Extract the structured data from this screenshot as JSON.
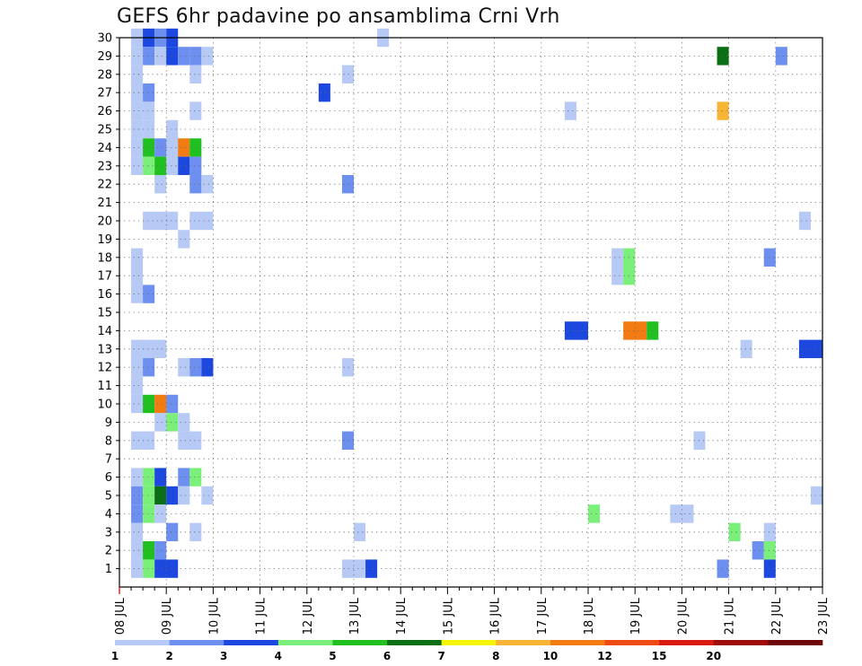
{
  "chart_data": {
    "type": "heatmap",
    "title": "GEFS 6hr padavine po ansamblima Crni Vrh",
    "xlabel": "",
    "ylabel": "",
    "x_tick_labels": [
      "08 JUL",
      "09 JUL",
      "10 JUL",
      "11 JUL",
      "12 JUL",
      "13 JUL",
      "14 JUL",
      "15 JUL",
      "16 JUL",
      "17 JUL",
      "18 JUL",
      "19 JUL",
      "20 JUL",
      "21 JUL",
      "22 JUL",
      "23 JUL"
    ],
    "x_units": "days from 08 JUL 00Z, 6-hour steps",
    "xlim": [
      0,
      15
    ],
    "y_tick_labels": [
      "1",
      "2",
      "3",
      "4",
      "5",
      "6",
      "7",
      "8",
      "9",
      "10",
      "11",
      "12",
      "13",
      "14",
      "15",
      "16",
      "17",
      "18",
      "19",
      "20",
      "21",
      "22",
      "23",
      "24",
      "25",
      "26",
      "27",
      "28",
      "29",
      "30"
    ],
    "ylim": [
      0,
      30
    ],
    "grid": true,
    "legend_position": "bottom",
    "legend": {
      "labels": [
        "1",
        "2",
        "3",
        "4",
        "5",
        "6",
        "7",
        "8",
        "10",
        "12",
        "15",
        "20"
      ],
      "colors": [
        "#b7c9f5",
        "#6c8ff0",
        "#1c48e0",
        "#7af07a",
        "#20c020",
        "#0a6e14",
        "#f5f50a",
        "#f8b434",
        "#f37c12",
        "#f04a14",
        "#d81a10",
        "#a00c0c",
        "#6e0808"
      ]
    },
    "cells": [
      {
        "member": 30,
        "x": 0.25,
        "w": 0.25,
        "c": 1
      },
      {
        "member": 30,
        "x": 0.5,
        "w": 0.25,
        "c": 3
      },
      {
        "member": 30,
        "x": 0.75,
        "w": 0.25,
        "c": 2
      },
      {
        "member": 30,
        "x": 1.0,
        "w": 0.25,
        "c": 3
      },
      {
        "member": 30,
        "x": 5.5,
        "w": 0.25,
        "c": 1
      },
      {
        "member": 29,
        "x": 0.25,
        "w": 0.25,
        "c": 1
      },
      {
        "member": 29,
        "x": 0.5,
        "w": 0.25,
        "c": 2
      },
      {
        "member": 29,
        "x": 0.75,
        "w": 0.25,
        "c": 1
      },
      {
        "member": 29,
        "x": 1.0,
        "w": 0.25,
        "c": 3
      },
      {
        "member": 29,
        "x": 1.25,
        "w": 0.25,
        "c": 2
      },
      {
        "member": 29,
        "x": 1.5,
        "w": 0.25,
        "c": 2
      },
      {
        "member": 29,
        "x": 1.75,
        "w": 0.25,
        "c": 1
      },
      {
        "member": 29,
        "x": 12.75,
        "w": 0.25,
        "c": 6
      },
      {
        "member": 29,
        "x": 14.0,
        "w": 0.25,
        "c": 2
      },
      {
        "member": 28,
        "x": 0.25,
        "w": 0.25,
        "c": 1
      },
      {
        "member": 28,
        "x": 1.5,
        "w": 0.25,
        "c": 1
      },
      {
        "member": 28,
        "x": 4.75,
        "w": 0.25,
        "c": 1
      },
      {
        "member": 27,
        "x": 0.25,
        "w": 0.25,
        "c": 1
      },
      {
        "member": 27,
        "x": 0.5,
        "w": 0.25,
        "c": 2
      },
      {
        "member": 27,
        "x": 4.25,
        "w": 0.25,
        "c": 3
      },
      {
        "member": 26,
        "x": 0.25,
        "w": 0.25,
        "c": 1
      },
      {
        "member": 26,
        "x": 0.5,
        "w": 0.25,
        "c": 1
      },
      {
        "member": 26,
        "x": 1.5,
        "w": 0.25,
        "c": 1
      },
      {
        "member": 26,
        "x": 9.5,
        "w": 0.25,
        "c": 1
      },
      {
        "member": 26,
        "x": 12.75,
        "w": 0.25,
        "c": 8
      },
      {
        "member": 25,
        "x": 0.25,
        "w": 0.25,
        "c": 1
      },
      {
        "member": 25,
        "x": 0.5,
        "w": 0.25,
        "c": 1
      },
      {
        "member": 25,
        "x": 1.0,
        "w": 0.25,
        "c": 1
      },
      {
        "member": 24,
        "x": 0.25,
        "w": 0.25,
        "c": 1
      },
      {
        "member": 24,
        "x": 0.5,
        "w": 0.25,
        "c": 5
      },
      {
        "member": 24,
        "x": 0.75,
        "w": 0.25,
        "c": 2
      },
      {
        "member": 24,
        "x": 1.0,
        "w": 0.25,
        "c": 1
      },
      {
        "member": 24,
        "x": 1.0,
        "w": 0.25,
        "c": 1
      },
      {
        "member": 24,
        "x": 1.0,
        "w": 0.25,
        "c": 1
      },
      {
        "member": 24,
        "x": 1.0,
        "w": 0.25,
        "c": 1
      },
      {
        "member": 24,
        "x": 1.0,
        "w": 0.25,
        "c": 1
      },
      {
        "member": 24,
        "x": 1.0,
        "w": 0.25,
        "c": 1
      },
      {
        "member": 24,
        "x": 1.25,
        "w": 0.25,
        "c": 9
      },
      {
        "member": 24,
        "x": 1.5,
        "w": 0.25,
        "c": 5
      },
      {
        "member": 23,
        "x": 0.25,
        "w": 0.25,
        "c": 1
      },
      {
        "member": 23,
        "x": 0.5,
        "w": 0.25,
        "c": 4
      },
      {
        "member": 23,
        "x": 0.75,
        "w": 0.25,
        "c": 5
      },
      {
        "member": 23,
        "x": 1.0,
        "w": 0.25,
        "c": 1
      },
      {
        "member": 23,
        "x": 1.25,
        "w": 0.25,
        "c": 3
      },
      {
        "member": 23,
        "x": 1.5,
        "w": 0.25,
        "c": 2
      },
      {
        "member": 22,
        "x": 0.75,
        "w": 0.25,
        "c": 1
      },
      {
        "member": 22,
        "x": 1.5,
        "w": 0.25,
        "c": 2
      },
      {
        "member": 22,
        "x": 1.75,
        "w": 0.25,
        "c": 1
      },
      {
        "member": 22,
        "x": 4.75,
        "w": 0.25,
        "c": 2
      },
      {
        "member": 20,
        "x": 0.5,
        "w": 0.75,
        "c": 1
      },
      {
        "member": 20,
        "x": 1.5,
        "w": 0.5,
        "c": 1
      },
      {
        "member": 20,
        "x": 14.5,
        "w": 0.25,
        "c": 1
      },
      {
        "member": 19,
        "x": 1.25,
        "w": 0.25,
        "c": 1
      },
      {
        "member": 18,
        "x": 0.25,
        "w": 0.25,
        "c": 1
      },
      {
        "member": 18,
        "x": 10.5,
        "w": 0.25,
        "c": 1
      },
      {
        "member": 18,
        "x": 10.75,
        "w": 0.25,
        "c": 4
      },
      {
        "member": 18,
        "x": 13.75,
        "w": 0.25,
        "c": 2
      },
      {
        "member": 17,
        "x": 0.25,
        "w": 0.25,
        "c": 1
      },
      {
        "member": 17,
        "x": 10.5,
        "w": 0.25,
        "c": 1
      },
      {
        "member": 17,
        "x": 10.75,
        "w": 0.25,
        "c": 4
      },
      {
        "member": 16,
        "x": 0.25,
        "w": 0.25,
        "c": 1
      },
      {
        "member": 16,
        "x": 0.5,
        "w": 0.25,
        "c": 2
      },
      {
        "member": 14,
        "x": 9.5,
        "w": 0.5,
        "c": 3
      },
      {
        "member": 14,
        "x": 10.75,
        "w": 0.5,
        "c": 9
      },
      {
        "member": 14,
        "x": 11.25,
        "w": 0.25,
        "c": 5
      },
      {
        "member": 13,
        "x": 0.25,
        "w": 0.75,
        "c": 1
      },
      {
        "member": 13,
        "x": 13.25,
        "w": 0.25,
        "c": 1
      },
      {
        "member": 13,
        "x": 14.5,
        "w": 0.5,
        "c": 3
      },
      {
        "member": 12,
        "x": 0.25,
        "w": 0.25,
        "c": 1
      },
      {
        "member": 12,
        "x": 0.5,
        "w": 0.25,
        "c": 2
      },
      {
        "member": 12,
        "x": 1.25,
        "w": 0.25,
        "c": 1
      },
      {
        "member": 12,
        "x": 1.5,
        "w": 0.25,
        "c": 2
      },
      {
        "member": 12,
        "x": 1.75,
        "w": 0.25,
        "c": 3
      },
      {
        "member": 12,
        "x": 4.75,
        "w": 0.25,
        "c": 1
      },
      {
        "member": 11,
        "x": 0.25,
        "w": 0.25,
        "c": 1
      },
      {
        "member": 10,
        "x": 0.25,
        "w": 0.25,
        "c": 1
      },
      {
        "member": 10,
        "x": 0.5,
        "w": 0.25,
        "c": 5
      },
      {
        "member": 10,
        "x": 0.75,
        "w": 0.25,
        "c": 9
      },
      {
        "member": 10,
        "x": 1.0,
        "w": 0.25,
        "c": 2
      },
      {
        "member": 9,
        "x": 0.75,
        "w": 0.25,
        "c": 1
      },
      {
        "member": 9,
        "x": 1.0,
        "w": 0.25,
        "c": 4
      },
      {
        "member": 9,
        "x": 1.25,
        "w": 0.25,
        "c": 1
      },
      {
        "member": 8,
        "x": 0.25,
        "w": 0.5,
        "c": 1
      },
      {
        "member": 8,
        "x": 1.25,
        "w": 0.5,
        "c": 1
      },
      {
        "member": 8,
        "x": 4.75,
        "w": 0.25,
        "c": 2
      },
      {
        "member": 8,
        "x": 12.25,
        "w": 0.25,
        "c": 1
      },
      {
        "member": 6,
        "x": 0.25,
        "w": 0.25,
        "c": 1
      },
      {
        "member": 6,
        "x": 0.5,
        "w": 0.25,
        "c": 4
      },
      {
        "member": 6,
        "x": 0.75,
        "w": 0.25,
        "c": 3
      },
      {
        "member": 6,
        "x": 1.25,
        "w": 0.25,
        "c": 2
      },
      {
        "member": 6,
        "x": 1.5,
        "w": 0.25,
        "c": 4
      },
      {
        "member": 5,
        "x": 0.25,
        "w": 0.25,
        "c": 2
      },
      {
        "member": 5,
        "x": 0.5,
        "w": 0.25,
        "c": 4
      },
      {
        "member": 5,
        "x": 0.75,
        "w": 0.25,
        "c": 6
      },
      {
        "member": 5,
        "x": 1.0,
        "w": 0.25,
        "c": 3
      },
      {
        "member": 5,
        "x": 1.25,
        "w": 0.25,
        "c": 1
      },
      {
        "member": 5,
        "x": 1.75,
        "w": 0.25,
        "c": 1
      },
      {
        "member": 5,
        "x": 14.75,
        "w": 0.25,
        "c": 1
      },
      {
        "member": 4,
        "x": 0.25,
        "w": 0.25,
        "c": 2
      },
      {
        "member": 4,
        "x": 0.5,
        "w": 0.25,
        "c": 4
      },
      {
        "member": 4,
        "x": 0.75,
        "w": 0.25,
        "c": 1
      },
      {
        "member": 4,
        "x": 10.0,
        "w": 0.25,
        "c": 4
      },
      {
        "member": 4,
        "x": 11.75,
        "w": 0.5,
        "c": 1
      },
      {
        "member": 3,
        "x": 0.25,
        "w": 0.25,
        "c": 1
      },
      {
        "member": 3,
        "x": 1.0,
        "w": 0.25,
        "c": 2
      },
      {
        "member": 3,
        "x": 1.5,
        "w": 0.25,
        "c": 1
      },
      {
        "member": 3,
        "x": 5.0,
        "w": 0.25,
        "c": 1
      },
      {
        "member": 3,
        "x": 13.0,
        "w": 0.25,
        "c": 4
      },
      {
        "member": 3,
        "x": 13.75,
        "w": 0.25,
        "c": 1
      },
      {
        "member": 2,
        "x": 0.25,
        "w": 0.25,
        "c": 1
      },
      {
        "member": 2,
        "x": 0.5,
        "w": 0.25,
        "c": 5
      },
      {
        "member": 2,
        "x": 0.75,
        "w": 0.25,
        "c": 2
      },
      {
        "member": 2,
        "x": 13.5,
        "w": 0.25,
        "c": 2
      },
      {
        "member": 2,
        "x": 13.75,
        "w": 0.25,
        "c": 4
      },
      {
        "member": 1,
        "x": 0.25,
        "w": 0.25,
        "c": 1
      },
      {
        "member": 1,
        "x": 0.5,
        "w": 0.25,
        "c": 4
      },
      {
        "member": 1,
        "x": 0.75,
        "w": 0.5,
        "c": 3
      },
      {
        "member": 1,
        "x": 4.75,
        "w": 0.5,
        "c": 1
      },
      {
        "member": 1,
        "x": 5.25,
        "w": 0.25,
        "c": 3
      },
      {
        "member": 1,
        "x": 12.75,
        "w": 0.25,
        "c": 2
      },
      {
        "member": 1,
        "x": 13.75,
        "w": 0.25,
        "c": 3
      }
    ]
  }
}
